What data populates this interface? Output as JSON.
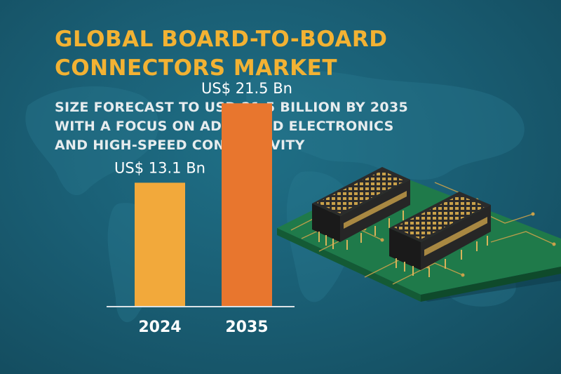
{
  "title_lines": [
    "GLOBAL BOARD-TO-BOARD",
    "CONNECTORS MARKET"
  ],
  "subtitle_lines": [
    "SIZE FORECAST TO USD 21.5 BILLION BY 2035",
    "WITH A FOCUS ON ADVANCED ELECTRONICS",
    "AND HIGH-SPEED CONNECTIVITY"
  ],
  "chart_data": {
    "type": "bar",
    "title": "",
    "xlabel": "",
    "ylabel": "",
    "categories": [
      "2024",
      "2035"
    ],
    "values": [
      13.1,
      21.5
    ],
    "data_labels": [
      "US$ 13.1 Bn",
      "US$ 21.5 Bn"
    ],
    "ylim": [
      0,
      25
    ],
    "grid": false,
    "bar_colors": [
      "#f2a93b",
      "#e8762e"
    ]
  },
  "colors": {
    "background": "#1a5f75",
    "title": "#f2b233",
    "subtitle": "#e6ecee",
    "pcb": "#1f7a4a",
    "connector": "#222222",
    "pins": "#c9a14a"
  },
  "illustration": {
    "icon": "pcb-board-with-connectors-icon"
  }
}
